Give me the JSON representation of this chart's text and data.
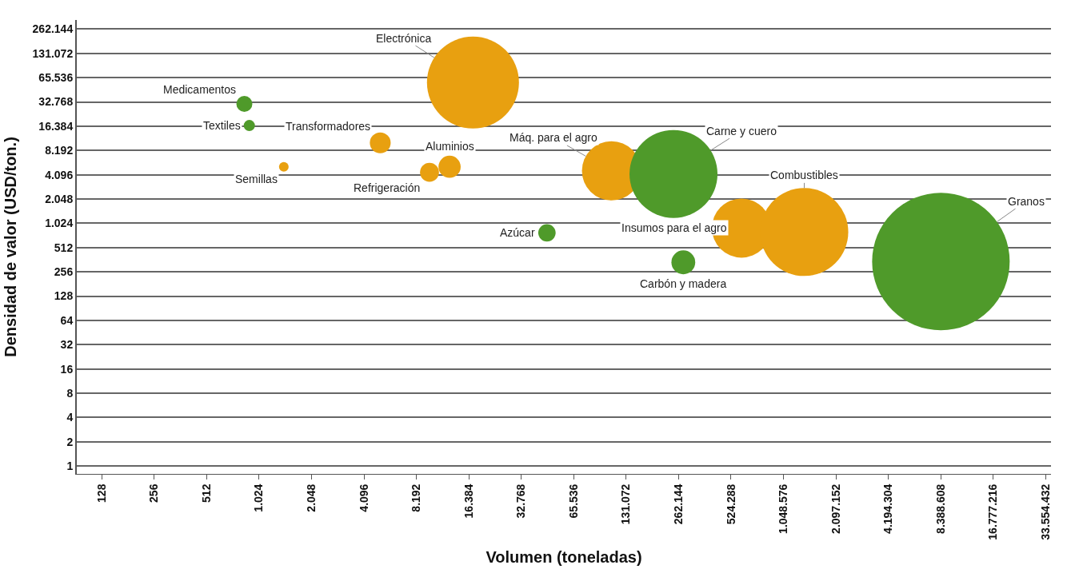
{
  "chart_data": {
    "type": "bubble",
    "xlabel": "Volumen (toneladas)",
    "ylabel": "Densidad de valor (USD/ton.)",
    "x": [
      843,
      900,
      1420,
      5080,
      9740,
      12700,
      17300,
      46000,
      108000,
      245000,
      279000,
      602000,
      1380000,
      8400000
    ],
    "values": [
      31000,
      16700,
      5140,
      10200,
      4390,
      5140,
      57000,
      780,
      4580,
      4190,
      336,
      893,
      798,
      344
    ],
    "sizes": [
      0.0135,
      0.0066,
      0.0049,
      0.023,
      0.019,
      0.026,
      0.447,
      0.016,
      0.185,
      0.409,
      0.03,
      0.185,
      0.409,
      1
    ],
    "colors": [
      "#4f9a2a",
      "#4f9a2a",
      "#e8a010",
      "#e8a010",
      "#e8a010",
      "#e8a010",
      "#e8a010",
      "#4f9a2a",
      "#e8a010",
      "#4f9a2a",
      "#4f9a2a",
      "#e8a010",
      "#e8a010",
      "#4f9a2a"
    ],
    "annotations": [
      {
        "text": "Medicamentos",
        "x": 843,
        "y": 31000
      },
      {
        "text": "Textiles",
        "x": 900,
        "y": 16700
      },
      {
        "text": "Semillas",
        "x": 1420,
        "y": 5140
      },
      {
        "text": "Transformadores",
        "x": 5080,
        "y": 10200
      },
      {
        "text": "Refrigeración",
        "x": 9740,
        "y": 4390
      },
      {
        "text": "Aluminios",
        "x": 12700,
        "y": 5140
      },
      {
        "text": "Electrónica",
        "x": 17300,
        "y": 57000
      },
      {
        "text": "Azúcar",
        "x": 46000,
        "y": 780
      },
      {
        "text": "Máq. para el agro",
        "x": 108000,
        "y": 4580
      },
      {
        "text": "Carne y cuero",
        "x": 245000,
        "y": 4190
      },
      {
        "text": "Carbón y madera",
        "x": 279000,
        "y": 336
      },
      {
        "text": "Insumos para el agro",
        "x": 602000,
        "y": 893
      },
      {
        "text": "Combustibles",
        "x": 1380000,
        "y": 798
      },
      {
        "text": "Granos",
        "x": 8400000,
        "y": 344
      }
    ],
    "log": "xy",
    "xlim": [
      92,
      36000000
    ],
    "ylim": [
      0.8,
      340000
    ],
    "xticks": [
      128,
      256,
      512,
      {
        "value": 1024,
        "label": "1.024"
      },
      {
        "value": 2048,
        "label": "2.048"
      },
      {
        "value": 4096,
        "label": "4.096"
      },
      {
        "value": 8192,
        "label": "8.192"
      },
      {
        "value": 16384,
        "label": "16.384"
      },
      {
        "value": 32768,
        "label": "32.768"
      },
      {
        "value": 65536,
        "label": "65.536"
      },
      {
        "value": 131072,
        "label": "131.072"
      },
      {
        "value": 262144,
        "label": "262.144"
      },
      {
        "value": 524288,
        "label": "524.288"
      },
      {
        "value": 1048576,
        "label": "1.048.576"
      },
      {
        "value": 2097152,
        "label": "2.097.152"
      },
      {
        "value": 4194304,
        "label": "4.194.304"
      },
      {
        "value": 8388608,
        "label": "8.388.608"
      },
      {
        "value": 16777216,
        "label": "16.777.216"
      },
      {
        "value": 33554432,
        "label": "33.554.432"
      }
    ],
    "yticks": [
      1,
      2,
      4,
      8,
      16,
      32,
      64,
      128,
      256,
      512,
      {
        "value": 1024,
        "label": "1.024"
      },
      {
        "value": 2048,
        "label": "2.048"
      },
      {
        "value": 4096,
        "label": "4.096"
      },
      {
        "value": 8192,
        "label": "8.192"
      },
      {
        "value": 16384,
        "label": "16.384"
      },
      {
        "value": 32768,
        "label": "32.768"
      },
      {
        "value": 65536,
        "label": "65.536"
      },
      {
        "value": 131072,
        "label": "131.072"
      },
      {
        "value": 262144,
        "label": "262.144"
      }
    ],
    "grid": "y"
  }
}
